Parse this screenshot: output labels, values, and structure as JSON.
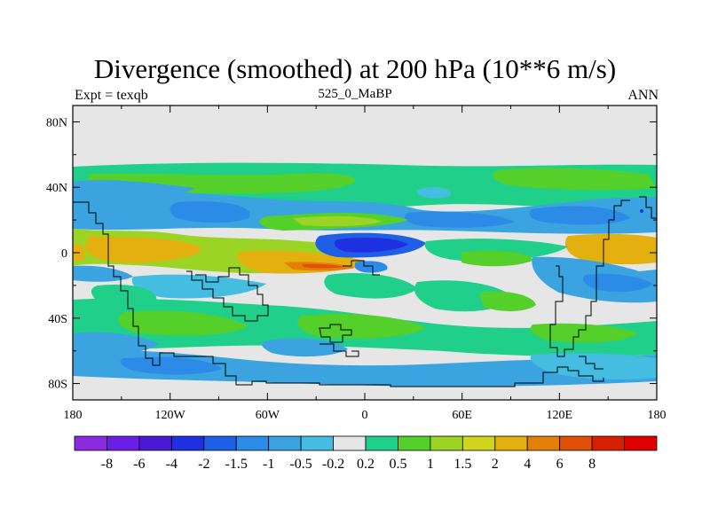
{
  "chart_data": {
    "type": "heatmap",
    "title": "Divergence (smoothed) at 200 hPa (10**6 m/s)",
    "left_subtitle": "Expt = texqb",
    "center_subtitle": "525_0_MaBP",
    "right_subtitle": "ANN",
    "x_ticks": [
      "180",
      "120W",
      "60W",
      "0",
      "60E",
      "120E",
      "180"
    ],
    "x_tick_values": [
      -180,
      -120,
      -60,
      0,
      60,
      120,
      180
    ],
    "y_ticks": [
      "80N",
      "40N",
      "0",
      "40S",
      "80S"
    ],
    "y_tick_values": [
      80,
      40,
      0,
      -40,
      -80
    ],
    "xlim": [
      -180,
      180
    ],
    "ylim": [
      -90,
      90
    ],
    "colorbar": {
      "colors": [
        "#8a2be2",
        "#6a1ee6",
        "#4b19d6",
        "#1f30e0",
        "#1f5fe6",
        "#2c8be6",
        "#3aa3e0",
        "#45bde0",
        "#e6e6e6",
        "#20d08a",
        "#55d02a",
        "#9bd424",
        "#cfd51d",
        "#e3b010",
        "#e38008",
        "#e05007",
        "#d82000",
        "#e00000"
      ],
      "labels": [
        "-8",
        "-6",
        "-4",
        "-2",
        "-1.5",
        "-1",
        "-0.5",
        "-0.2",
        "0.2",
        "0.5",
        "1",
        "1.5",
        "2",
        "4",
        "6",
        "8"
      ]
    }
  }
}
